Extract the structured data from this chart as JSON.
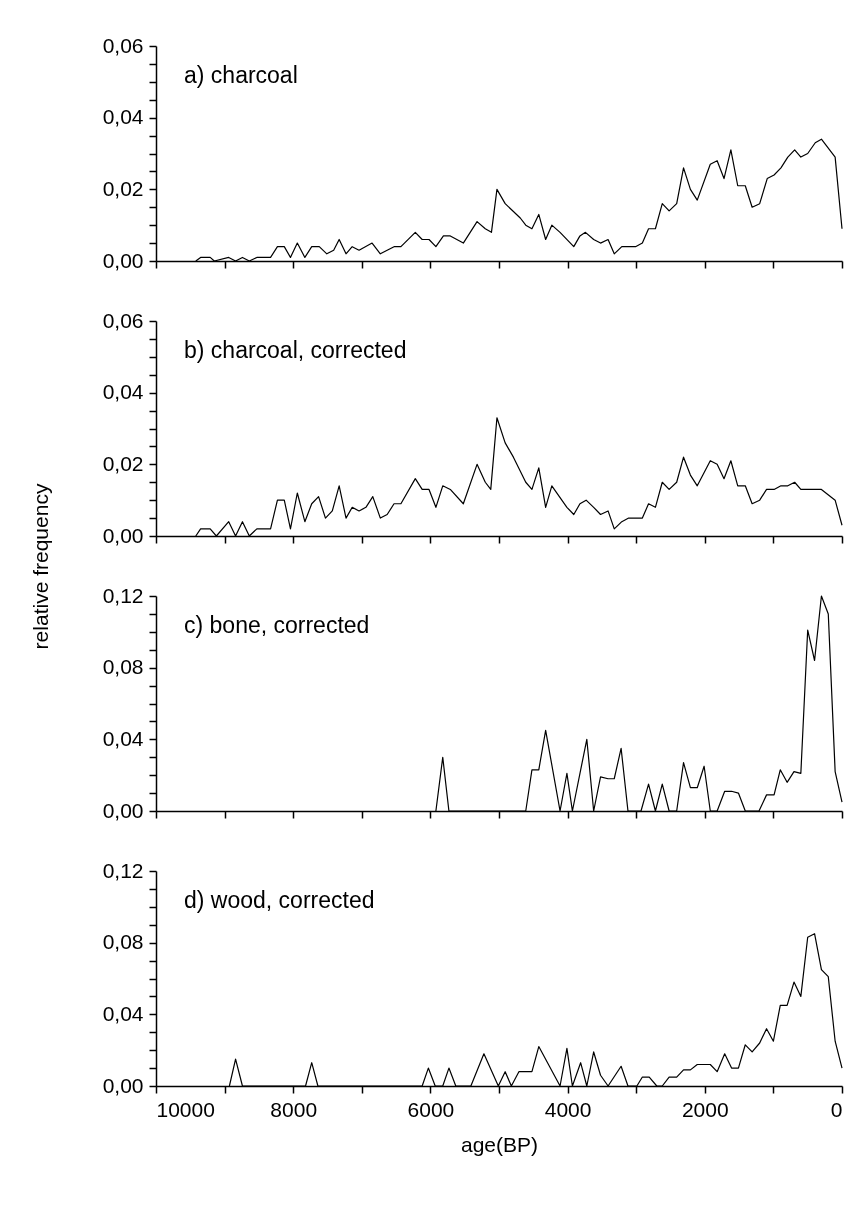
{
  "chart_data": [
    {
      "type": "line",
      "annotations": [
        "a) charcoal"
      ],
      "color": "#000000",
      "tick_labels": "y",
      "marker": "none",
      "line_style": "solid",
      "xlim": [
        10000,
        0
      ],
      "xticks": [
        10000,
        {
          "value": 9000,
          "label": null
        },
        8000,
        {
          "value": 7000,
          "label": null
        },
        6000,
        {
          "value": 5000,
          "label": null
        },
        4000,
        {
          "value": 3000,
          "label": null
        },
        2000,
        {
          "value": 1000,
          "label": null
        },
        0
      ],
      "ylim": [
        0,
        0.06
      ],
      "yticks": [
        {
          "value": 0,
          "label": "0,00"
        },
        {
          "value": 0.005,
          "label": null
        },
        {
          "value": 0.01,
          "label": null
        },
        {
          "value": 0.015,
          "label": null
        },
        {
          "value": 0.02,
          "label": "0,02"
        },
        {
          "value": 0.025,
          "label": null
        },
        {
          "value": 0.03,
          "label": null
        },
        {
          "value": 0.035,
          "label": null
        },
        {
          "value": 0.04,
          "label": "0,04"
        },
        {
          "value": 0.045,
          "label": null
        },
        {
          "value": 0.05,
          "label": null
        },
        {
          "value": 0.055,
          "label": null
        },
        {
          "value": 0.06,
          "label": "0,06"
        }
      ],
      "x": [
        9420,
        9350,
        9210,
        9150,
        8940,
        8840,
        8740,
        8640,
        8530,
        8330,
        8230,
        8130,
        8040,
        7940,
        7830,
        7730,
        7620,
        7510,
        7410,
        7330,
        7230,
        7140,
        7040,
        6850,
        6730,
        6530,
        6430,
        6220,
        6120,
        6020,
        5920,
        5810,
        5710,
        5520,
        5320,
        5200,
        5110,
        5030,
        4910,
        4690,
        4610,
        4520,
        4420,
        4320,
        4230,
        4110,
        3910,
        3820,
        3740,
        3620,
        3520,
        3410,
        3320,
        3210,
        3010,
        2910,
        2820,
        2720,
        2620,
        2520,
        2410,
        2310,
        2210,
        2110,
        1920,
        1820,
        1720,
        1620,
        1520,
        1410,
        1310,
        1200,
        1090,
        990,
        890,
        790,
        690,
        600,
        500,
        390,
        300,
        100,
        0
      ],
      "values": [
        0,
        0.001,
        0.001,
        0,
        0.001,
        0,
        0.001,
        0,
        0.001,
        0.001,
        0.004,
        0.004,
        0.001,
        0.005,
        0.001,
        0.004,
        0.004,
        0.002,
        0.003,
        0.006,
        0.002,
        0.004,
        0.003,
        0.005,
        0.002,
        0.004,
        0.004,
        0.008,
        0.006,
        0.006,
        0.004,
        0.007,
        0.007,
        0.005,
        0.011,
        0.009,
        0.008,
        0.02,
        0.016,
        0.012,
        0.01,
        0.009,
        0.013,
        0.006,
        0.01,
        0.008,
        0.004,
        0.007,
        0.008,
        0.006,
        0.005,
        0.006,
        0.002,
        0.004,
        0.004,
        0.005,
        0.009,
        0.009,
        0.016,
        0.014,
        0.016,
        0.026,
        0.02,
        0.017,
        0.027,
        0.028,
        0.023,
        0.031,
        0.021,
        0.021,
        0.015,
        0.016,
        0.023,
        0.024,
        0.026,
        0.029,
        0.031,
        0.029,
        0.03,
        0.033,
        0.034,
        0.029,
        0.009
      ]
    },
    {
      "type": "line",
      "annotations": [
        "b) charcoal, corrected"
      ],
      "ylabel": "relative frequency",
      "color": "#000000",
      "tick_labels": "y",
      "marker": "none",
      "line_style": "solid",
      "xlim": [
        10000,
        0
      ],
      "xticks": [
        10000,
        {
          "value": 9000,
          "label": null
        },
        8000,
        {
          "value": 7000,
          "label": null
        },
        6000,
        {
          "value": 5000,
          "label": null
        },
        4000,
        {
          "value": 3000,
          "label": null
        },
        2000,
        {
          "value": 1000,
          "label": null
        },
        0
      ],
      "ylim": [
        0,
        0.06
      ],
      "yticks": [
        {
          "value": 0,
          "label": "0,00"
        },
        {
          "value": 0.005,
          "label": null
        },
        {
          "value": 0.01,
          "label": null
        },
        {
          "value": 0.015,
          "label": null
        },
        {
          "value": 0.02,
          "label": "0,02"
        },
        {
          "value": 0.025,
          "label": null
        },
        {
          "value": 0.03,
          "label": null
        },
        {
          "value": 0.035,
          "label": null
        },
        {
          "value": 0.04,
          "label": "0,04"
        },
        {
          "value": 0.045,
          "label": null
        },
        {
          "value": 0.05,
          "label": null
        },
        {
          "value": 0.055,
          "label": null
        },
        {
          "value": 0.06,
          "label": "0,06"
        }
      ],
      "x": [
        9420,
        9350,
        9210,
        9120,
        8940,
        8840,
        8740,
        8640,
        8530,
        8330,
        8230,
        8130,
        8040,
        7940,
        7830,
        7730,
        7630,
        7530,
        7430,
        7330,
        7230,
        7140,
        7040,
        6940,
        6840,
        6730,
        6630,
        6530,
        6430,
        6220,
        6120,
        6020,
        5920,
        5820,
        5710,
        5520,
        5320,
        5200,
        5120,
        5030,
        4910,
        4790,
        4610,
        4520,
        4420,
        4320,
        4230,
        4010,
        3910,
        3820,
        3730,
        3620,
        3520,
        3410,
        3320,
        3210,
        3110,
        2910,
        2820,
        2720,
        2620,
        2520,
        2410,
        2310,
        2210,
        2110,
        1920,
        1820,
        1720,
        1620,
        1520,
        1410,
        1310,
        1200,
        1100,
        990,
        890,
        790,
        690,
        600,
        300,
        100,
        0
      ],
      "values": [
        0,
        0.002,
        0.002,
        0,
        0.004,
        0,
        0.004,
        0,
        0.002,
        0.002,
        0.01,
        0.01,
        0.002,
        0.012,
        0.004,
        0.009,
        0.011,
        0.005,
        0.007,
        0.014,
        0.005,
        0.008,
        0.007,
        0.008,
        0.011,
        0.005,
        0.006,
        0.009,
        0.009,
        0.016,
        0.013,
        0.013,
        0.008,
        0.014,
        0.013,
        0.009,
        0.02,
        0.015,
        0.013,
        0.033,
        0.026,
        0.022,
        0.015,
        0.013,
        0.019,
        0.008,
        0.014,
        0.008,
        0.006,
        0.009,
        0.01,
        0.008,
        0.006,
        0.007,
        0.002,
        0.004,
        0.005,
        0.005,
        0.009,
        0.008,
        0.015,
        0.013,
        0.015,
        0.022,
        0.017,
        0.014,
        0.021,
        0.02,
        0.016,
        0.021,
        0.014,
        0.014,
        0.009,
        0.01,
        0.013,
        0.013,
        0.014,
        0.014,
        0.015,
        0.013,
        0.013,
        0.01,
        0.003
      ]
    },
    {
      "type": "line",
      "annotations": [
        "c) bone, corrected"
      ],
      "color": "#000000",
      "tick_labels": "y",
      "marker": "none",
      "line_style": "solid",
      "xlim": [
        10000,
        0
      ],
      "xticks": [
        10000,
        {
          "value": 9000,
          "label": null
        },
        8000,
        {
          "value": 7000,
          "label": null
        },
        6000,
        {
          "value": 5000,
          "label": null
        },
        4000,
        {
          "value": 3000,
          "label": null
        },
        2000,
        {
          "value": 1000,
          "label": null
        },
        0
      ],
      "ylim": [
        0,
        0.12
      ],
      "yticks": [
        {
          "value": 0,
          "label": "0,00"
        },
        {
          "value": 0.01,
          "label": null
        },
        {
          "value": 0.02,
          "label": null
        },
        {
          "value": 0.03,
          "label": null
        },
        {
          "value": 0.04,
          "label": "0,04"
        },
        {
          "value": 0.05,
          "label": null
        },
        {
          "value": 0.06,
          "label": null
        },
        {
          "value": 0.07,
          "label": null
        },
        {
          "value": 0.08,
          "label": "0,08"
        },
        {
          "value": 0.09,
          "label": null
        },
        {
          "value": 0.1,
          "label": null
        },
        {
          "value": 0.11,
          "label": null
        },
        {
          "value": 0.12,
          "label": "0,12"
        }
      ],
      "x": [
        5920,
        5820,
        5730,
        4610,
        4520,
        4420,
        4320,
        4110,
        4010,
        3930,
        3720,
        3620,
        3520,
        3410,
        3320,
        3220,
        3120,
        2930,
        2820,
        2720,
        2620,
        2520,
        2410,
        2310,
        2210,
        2110,
        2010,
        1920,
        1820,
        1710,
        1610,
        1510,
        1410,
        1210,
        1100,
        990,
        900,
        800,
        700,
        600,
        500,
        400,
        300,
        200,
        100,
        0
      ],
      "values": [
        0,
        0.03,
        0,
        0,
        0.023,
        0.023,
        0.045,
        0,
        0.021,
        0,
        0.04,
        0,
        0.019,
        0.018,
        0.018,
        0.035,
        0,
        0,
        0.015,
        0,
        0.015,
        0,
        0,
        0.027,
        0.013,
        0.013,
        0.025,
        0,
        0,
        0.011,
        0.011,
        0.01,
        0,
        0,
        0.009,
        0.009,
        0.023,
        0.016,
        0.022,
        0.021,
        0.101,
        0.084,
        0.12,
        0.11,
        0.022,
        0.005
      ]
    },
    {
      "type": "line",
      "annotations": [
        "d) wood, corrected"
      ],
      "xlabel": "age(BP)",
      "color": "#000000",
      "marker": "none",
      "line_style": "solid",
      "xlim": [
        10000,
        0
      ],
      "xticks": [
        10000,
        {
          "value": 9000,
          "label": null
        },
        8000,
        {
          "value": 7000,
          "label": null
        },
        6000,
        {
          "value": 5000,
          "label": null
        },
        4000,
        {
          "value": 3000,
          "label": null
        },
        2000,
        {
          "value": 1000,
          "label": null
        },
        0
      ],
      "ylim": [
        0,
        0.12
      ],
      "yticks": [
        {
          "value": 0,
          "label": "0,00"
        },
        {
          "value": 0.01,
          "label": null
        },
        {
          "value": 0.02,
          "label": null
        },
        {
          "value": 0.03,
          "label": null
        },
        {
          "value": 0.04,
          "label": "0,04"
        },
        {
          "value": 0.05,
          "label": null
        },
        {
          "value": 0.06,
          "label": null
        },
        {
          "value": 0.07,
          "label": null
        },
        {
          "value": 0.08,
          "label": "0,08"
        },
        {
          "value": 0.09,
          "label": null
        },
        {
          "value": 0.1,
          "label": null
        },
        {
          "value": 0.11,
          "label": null
        },
        {
          "value": 0.12,
          "label": "0,12"
        }
      ],
      "x": [
        8930,
        8840,
        8740,
        7820,
        7730,
        7640,
        6120,
        6030,
        5930,
        5820,
        5730,
        5630,
        5410,
        5220,
        5010,
        4910,
        4820,
        4710,
        4520,
        4420,
        4110,
        4010,
        3930,
        3810,
        3720,
        3620,
        3520,
        3410,
        3220,
        3120,
        2990,
        2910,
        2810,
        2700,
        2620,
        2520,
        2410,
        2310,
        2210,
        2110,
        1920,
        1820,
        1710,
        1610,
        1510,
        1410,
        1310,
        1200,
        1100,
        1000,
        900,
        800,
        700,
        600,
        500,
        400,
        300,
        200,
        100,
        0
      ],
      "values": [
        0,
        0.015,
        0,
        0,
        0.013,
        0,
        0,
        0.01,
        0,
        0,
        0.01,
        0,
        0,
        0.018,
        0,
        0.008,
        0,
        0.008,
        0.008,
        0.022,
        0,
        0.021,
        0,
        0.013,
        0,
        0.019,
        0.006,
        0,
        0.011,
        0,
        0,
        0.005,
        0.005,
        0,
        0,
        0.005,
        0.005,
        0.009,
        0.009,
        0.012,
        0.012,
        0.008,
        0.018,
        0.01,
        0.01,
        0.023,
        0.019,
        0.024,
        0.032,
        0.025,
        0.045,
        0.045,
        0.058,
        0.05,
        0.083,
        0.085,
        0.065,
        0.061,
        0.025,
        0.01
      ]
    }
  ]
}
